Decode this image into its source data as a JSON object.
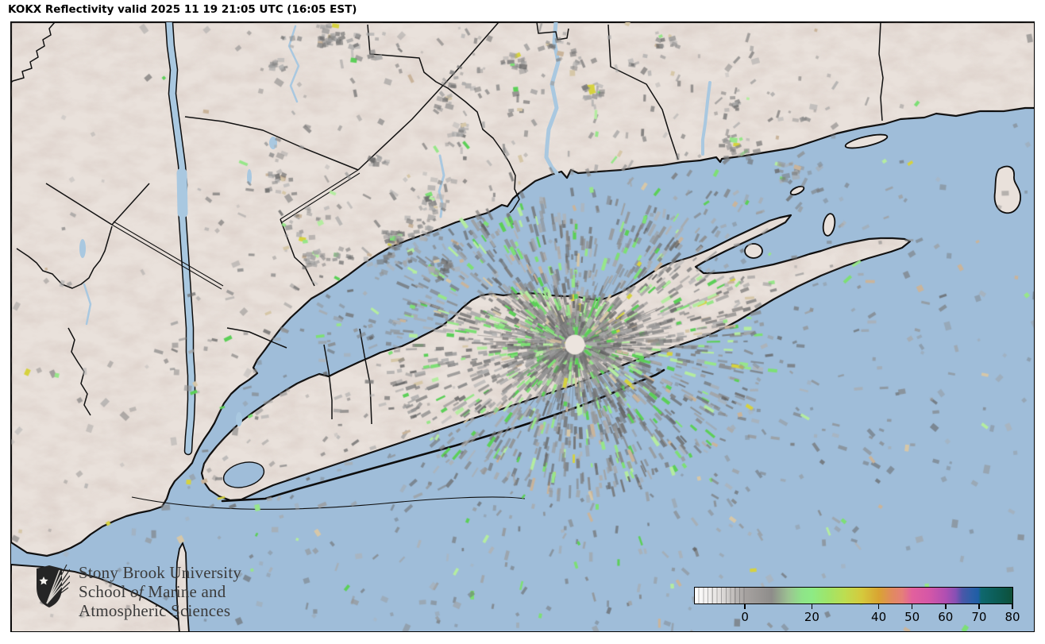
{
  "title": "KOKX Reflectivity valid 2025 11 19 21:05 UTC (16:05 EST)",
  "branding": {
    "line1": "Stony Brook University",
    "line2_prefix": "School ",
    "line2_italic": "of",
    "line2_suffix": " Marine and",
    "line3": "Atmospheric Sciences"
  },
  "colorbar": {
    "value_min": -15,
    "value_max": 80,
    "tick_values": [
      0,
      20,
      40,
      50,
      60,
      70,
      80
    ],
    "tick_labels": [
      "0",
      "20",
      "40",
      "50",
      "60",
      "70",
      "80"
    ],
    "striped_below_value": 0.7,
    "outline_color": "#000000",
    "gradient_stops": [
      {
        "v": -15,
        "c": "#ffffff"
      },
      {
        "v": -8,
        "c": "#e6e3e1"
      },
      {
        "v": 0,
        "c": "#a6a2a0"
      },
      {
        "v": 8,
        "c": "#8e8c8a"
      },
      {
        "v": 13,
        "c": "#9cc292"
      },
      {
        "v": 17,
        "c": "#8fe389"
      },
      {
        "v": 20,
        "c": "#8deb85"
      },
      {
        "v": 25,
        "c": "#a0e468"
      },
      {
        "v": 30,
        "c": "#bedd50"
      },
      {
        "v": 35,
        "c": "#d5c93c"
      },
      {
        "v": 40,
        "c": "#d9a432"
      },
      {
        "v": 44,
        "c": "#e18a5f"
      },
      {
        "v": 47,
        "c": "#e57f78"
      },
      {
        "v": 50,
        "c": "#e2609d"
      },
      {
        "v": 55,
        "c": "#d557a7"
      },
      {
        "v": 60,
        "c": "#b04fb2"
      },
      {
        "v": 63,
        "c": "#8850b4"
      },
      {
        "v": 65,
        "c": "#4b57a9"
      },
      {
        "v": 68,
        "c": "#2b5fa7"
      },
      {
        "v": 69.8,
        "c": "#1f5ea5"
      },
      {
        "v": 70.6,
        "c": "#0e686f"
      },
      {
        "v": 76,
        "c": "#0c5b52"
      },
      {
        "v": 79,
        "c": "#0d5340"
      },
      {
        "v": 80,
        "c": "#114e36"
      }
    ]
  },
  "map_colors": {
    "water": "#9fbdd9",
    "land": "#e9e1db",
    "coastline": "#0d0d0d",
    "boundary": "#111111",
    "river": "#a9c8e0",
    "echo_grays": [
      96,
      180
    ],
    "echo_greens": [
      "#7ddf75",
      "#97e689",
      "#5ccf58",
      "#b4eca0"
    ],
    "echo_tans": [
      "#c9b49b",
      "#d6c7a8"
    ],
    "echo_yellow": "#d6d23e"
  }
}
